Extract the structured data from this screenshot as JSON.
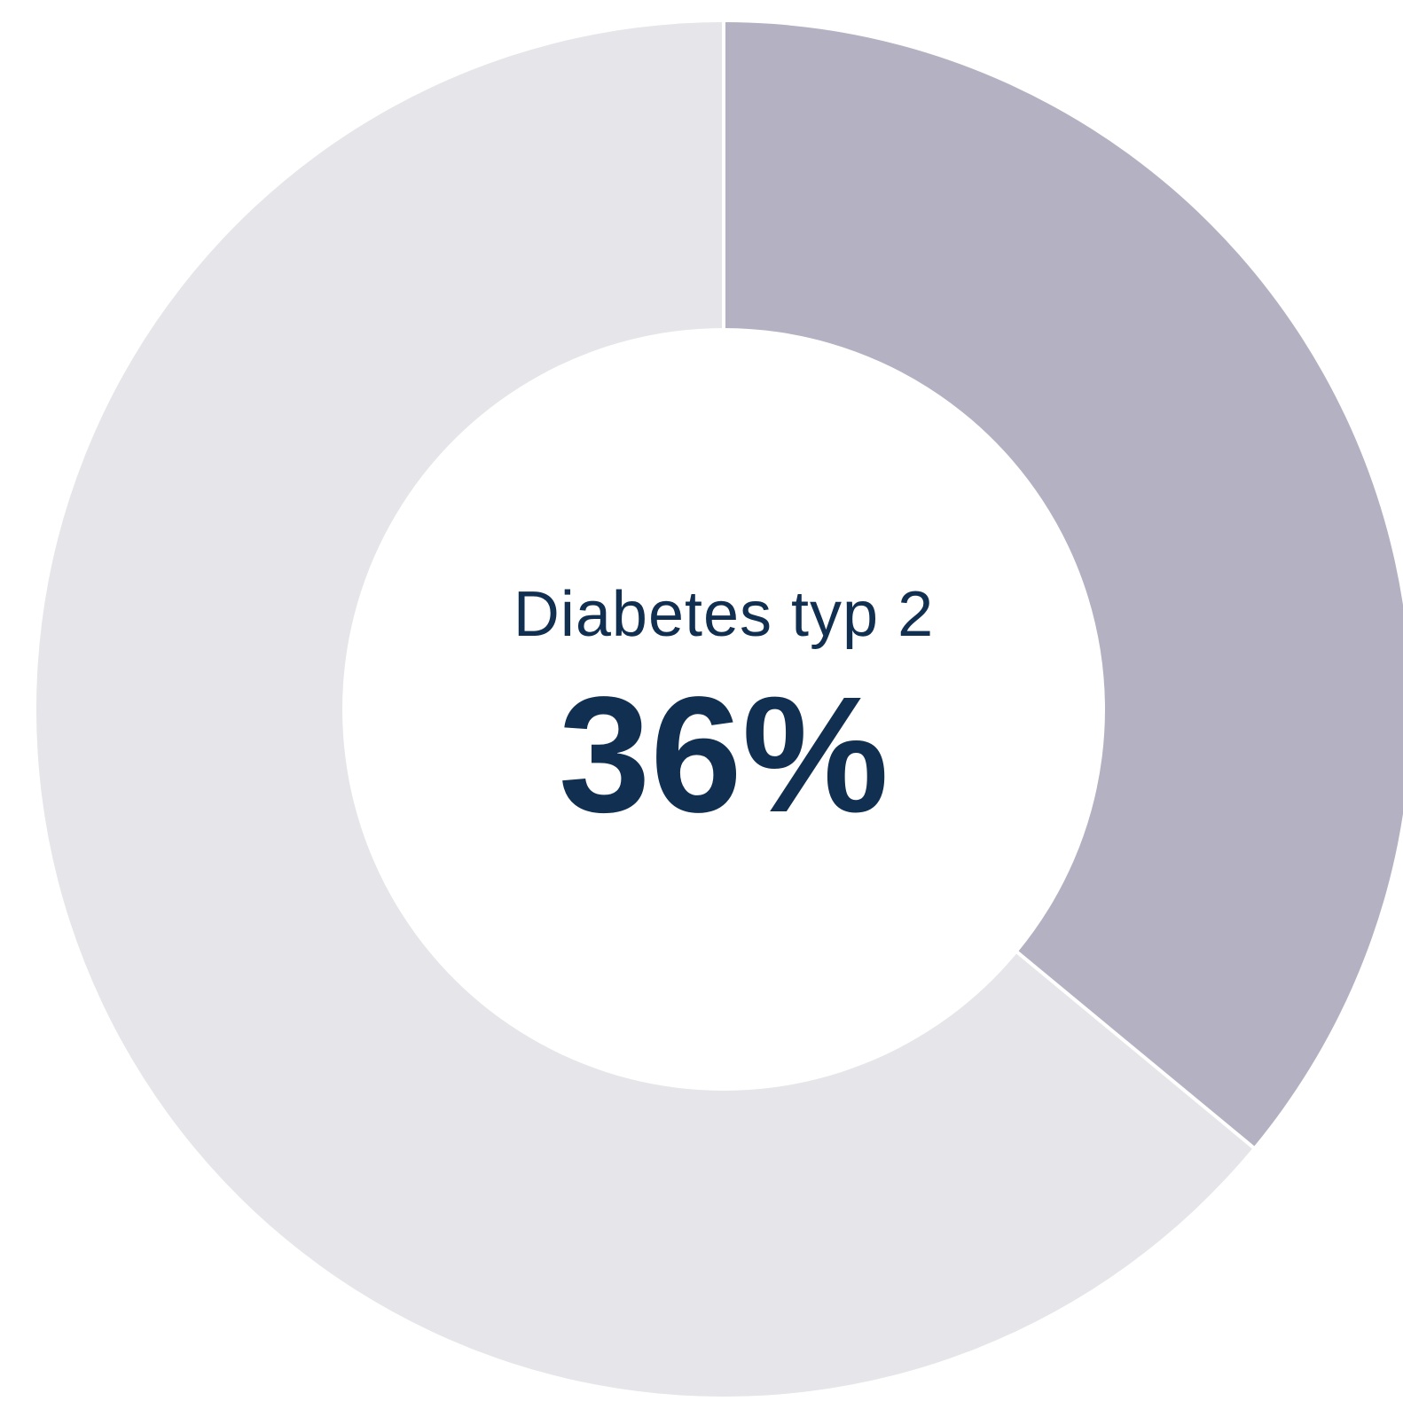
{
  "chart_data": {
    "type": "pie",
    "style": "donut",
    "title": "Diabetes typ 2",
    "center_value": "36%",
    "slices": [
      {
        "value": 36,
        "color": "#b4b1c2",
        "highlighted": true
      },
      {
        "value": 64,
        "color": "#e5e5ea",
        "highlighted": false
      }
    ],
    "start_angle": "top (12 o'clock), clockwise",
    "separator_color": "#ffffff",
    "text_color": "#112f50"
  }
}
